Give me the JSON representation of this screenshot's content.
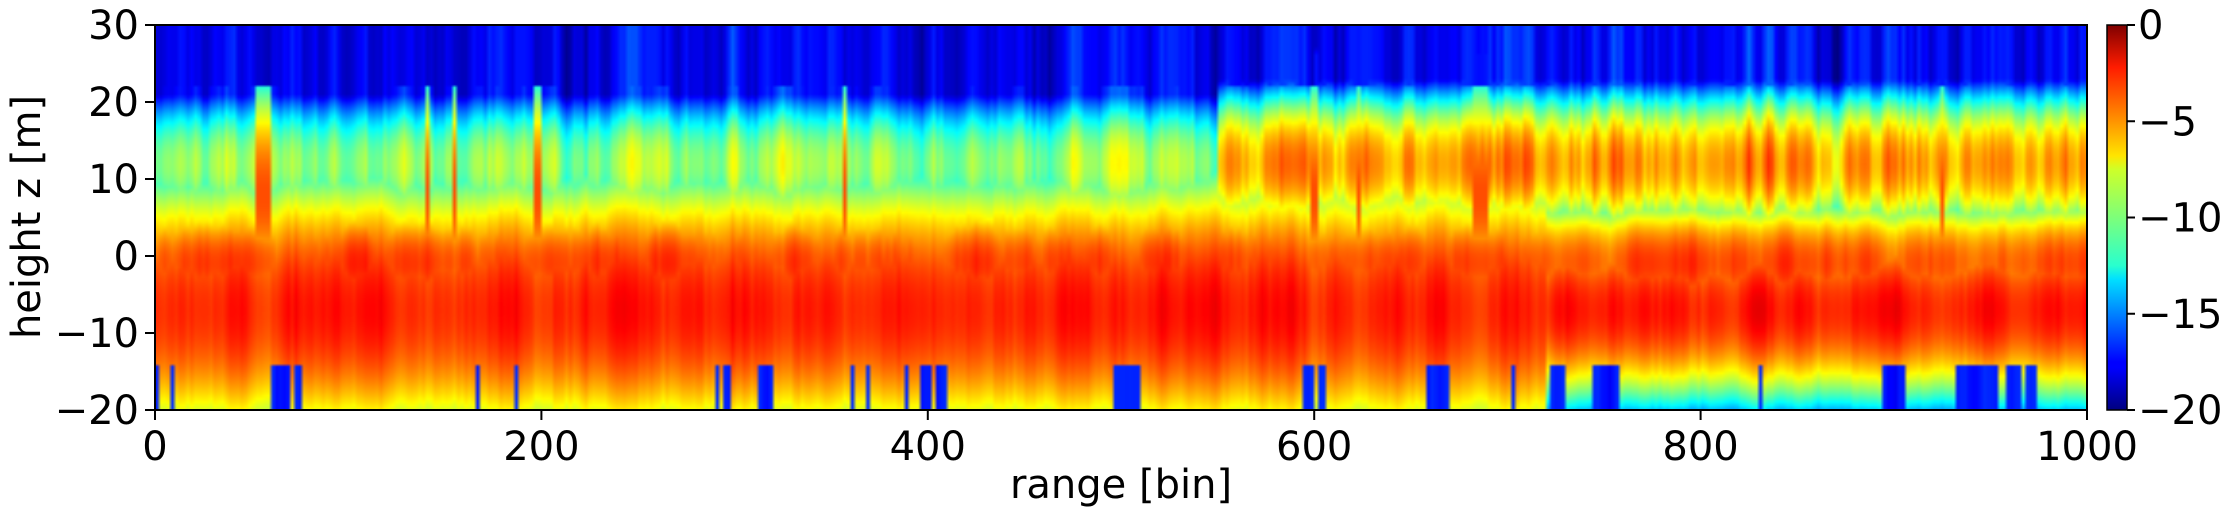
{
  "chart_data": {
    "type": "heatmap",
    "title": "",
    "xlabel": "range [bin]",
    "ylabel": "height z [m]",
    "xlim": [
      0,
      1000
    ],
    "ylim": [
      -20,
      30
    ],
    "x_ticks": [
      "0",
      "200",
      "400",
      "600",
      "800",
      "1000"
    ],
    "x_tick_values": [
      0,
      200,
      400,
      600,
      800,
      1000
    ],
    "y_ticks": [
      "−20",
      "−10",
      "0",
      "10",
      "20",
      "30"
    ],
    "y_tick_values": [
      -20,
      -10,
      0,
      10,
      20,
      30
    ],
    "colormap": "jet",
    "colorbar": {
      "range": [
        -20,
        0
      ],
      "ticks": [
        "−20",
        "−15",
        "−10",
        "−5",
        "0"
      ],
      "tick_values": [
        -20,
        -15,
        -10,
        -5,
        0
      ]
    },
    "grid": false,
    "features": [
      {
        "x_range": [
          0,
          700
        ],
        "z_center": -7,
        "peak_value": -1,
        "description": "strong band"
      },
      {
        "x_range": [
          0,
          700
        ],
        "z_center": 1,
        "peak_value": -2
      },
      {
        "x_range": [
          550,
          1000
        ],
        "z_center": 12,
        "peak_value": -3
      },
      {
        "x_range": [
          0,
          1000
        ],
        "z_center": 27,
        "peak_value": -18
      }
    ]
  },
  "colors": {
    "background": "#ffffff",
    "axis": "#000000"
  }
}
